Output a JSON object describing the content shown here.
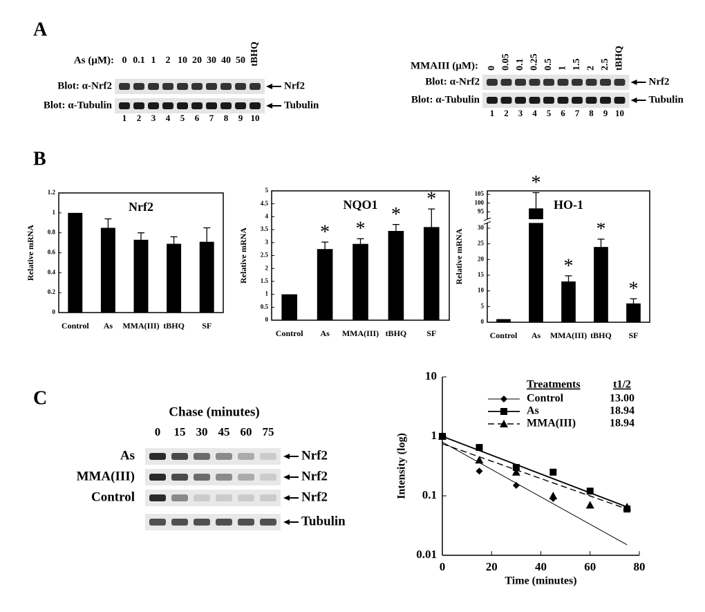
{
  "panel_labels": [
    "A",
    "B",
    "C"
  ],
  "blot_as": {
    "dose_label": "As (μM):",
    "doses": [
      "0",
      "0.1",
      "1",
      "2",
      "10",
      "20",
      "30",
      "40",
      "50",
      "tBHQ"
    ],
    "row_labels": [
      "Blot: α-Nrf2",
      "Blot: α-Tubulin"
    ],
    "band_labels": [
      "Nrf2",
      "Tubulin"
    ],
    "lanes": [
      "1",
      "2",
      "3",
      "4",
      "5",
      "6",
      "7",
      "8",
      "9",
      "10"
    ]
  },
  "blot_mma": {
    "dose_label": "MMAIII (μM):",
    "doses": [
      "0",
      "0.05",
      "0.1",
      "0.25",
      "0.5",
      "1",
      "1.5",
      "2",
      "2.5",
      "tBHQ"
    ],
    "row_labels": [
      "Blot: α-Nrf2",
      "Blot: α-Tubulin"
    ],
    "band_labels": [
      "Nrf2",
      "Tubulin"
    ],
    "lanes": [
      "1",
      "2",
      "3",
      "4",
      "5",
      "6",
      "7",
      "8",
      "9",
      "10"
    ]
  },
  "blot_chase": {
    "title": "Chase (minutes)",
    "times": [
      "0",
      "15",
      "30",
      "45",
      "60",
      "75"
    ],
    "row_labels": [
      "As",
      "MMA(III)",
      "Control"
    ],
    "band_labels": [
      "Nrf2",
      "Nrf2",
      "Nrf2",
      "Tubulin"
    ]
  },
  "chart_data": [
    {
      "type": "bar",
      "title": "Nrf2",
      "ylabel": "Relative mRNA",
      "color": "#000000",
      "categories": [
        "Control",
        "As",
        "MMA(III)",
        "tBHQ",
        "SF"
      ],
      "values": [
        1,
        0.85,
        0.73,
        0.69,
        0.71
      ],
      "errors": [
        null,
        0.09,
        0.07,
        0.07,
        0.14
      ],
      "ylim": [
        0,
        1.2
      ],
      "yticks": [
        0,
        0.2,
        0.4,
        0.6,
        0.8,
        1,
        1.2
      ]
    },
    {
      "type": "bar",
      "title": "NQO1",
      "ylabel": "Relative mRNA",
      "color": "#000000",
      "categories": [
        "Control",
        "As",
        "MMA(III)",
        "tBHQ",
        "SF"
      ],
      "values": [
        1,
        2.75,
        2.95,
        3.45,
        3.6
      ],
      "errors": [
        null,
        0.27,
        0.2,
        0.25,
        0.7
      ],
      "significance": [
        null,
        "*",
        "*",
        "*",
        "*"
      ],
      "ylim": [
        0,
        5
      ],
      "yticks": [
        0,
        0.5,
        1,
        1.5,
        2,
        2.5,
        3,
        3.5,
        4,
        4.5,
        5
      ]
    },
    {
      "type": "bar",
      "title": "HO-1",
      "ylabel": "Relative mRNA",
      "color": "#000000",
      "categories": [
        "Control",
        "As",
        "MMA(III)",
        "tBHQ",
        "SF"
      ],
      "values": [
        1,
        97,
        13,
        24,
        6
      ],
      "errors": [
        null,
        9,
        1.8,
        2.5,
        1.5
      ],
      "significance": [
        null,
        "*",
        "*",
        "*",
        "*"
      ],
      "ylim": [
        0,
        107
      ],
      "ybreak": [
        31,
        92
      ],
      "yticks": [
        0,
        5,
        10,
        15,
        20,
        25,
        30,
        95,
        100,
        105
      ]
    },
    {
      "type": "line",
      "ylog": true,
      "xlabel": "Time (minutes)",
      "ylabel": "Intensity (log)",
      "color": "#000000",
      "xlim": [
        0,
        80
      ],
      "xticks": [
        0,
        20,
        40,
        60,
        80
      ],
      "ylim": [
        0.01,
        10
      ],
      "yticks": [
        0.01,
        0.1,
        1,
        10
      ],
      "legend_headers": [
        "Treatments",
        "t1/2"
      ],
      "series": [
        {
          "name": "Control",
          "marker": "diamond",
          "line_style": "thin",
          "half_life": "13.00",
          "x": [
            0,
            15,
            30,
            45
          ],
          "values": [
            1,
            0.26,
            0.15,
            0.09
          ],
          "fit_x": [
            0,
            75
          ],
          "fit_y": [
            0.8,
            0.015
          ]
        },
        {
          "name": "As",
          "marker": "square",
          "line_style": "solid",
          "half_life": "18.94",
          "x": [
            0,
            15,
            30,
            45,
            60,
            75
          ],
          "values": [
            1,
            0.65,
            0.3,
            0.25,
            0.12,
            0.06
          ],
          "fit_x": [
            0,
            75
          ],
          "fit_y": [
            1,
            0.065
          ]
        },
        {
          "name": "MMA(III)",
          "marker": "triangle",
          "line_style": "dashed",
          "half_life": "18.94",
          "x": [
            0,
            15,
            30,
            45,
            60,
            75
          ],
          "values": [
            1,
            0.4,
            0.25,
            0.1,
            0.07,
            0.065
          ],
          "fit_x": [
            0,
            75
          ],
          "fit_y": [
            0.75,
            0.06
          ]
        }
      ]
    }
  ]
}
